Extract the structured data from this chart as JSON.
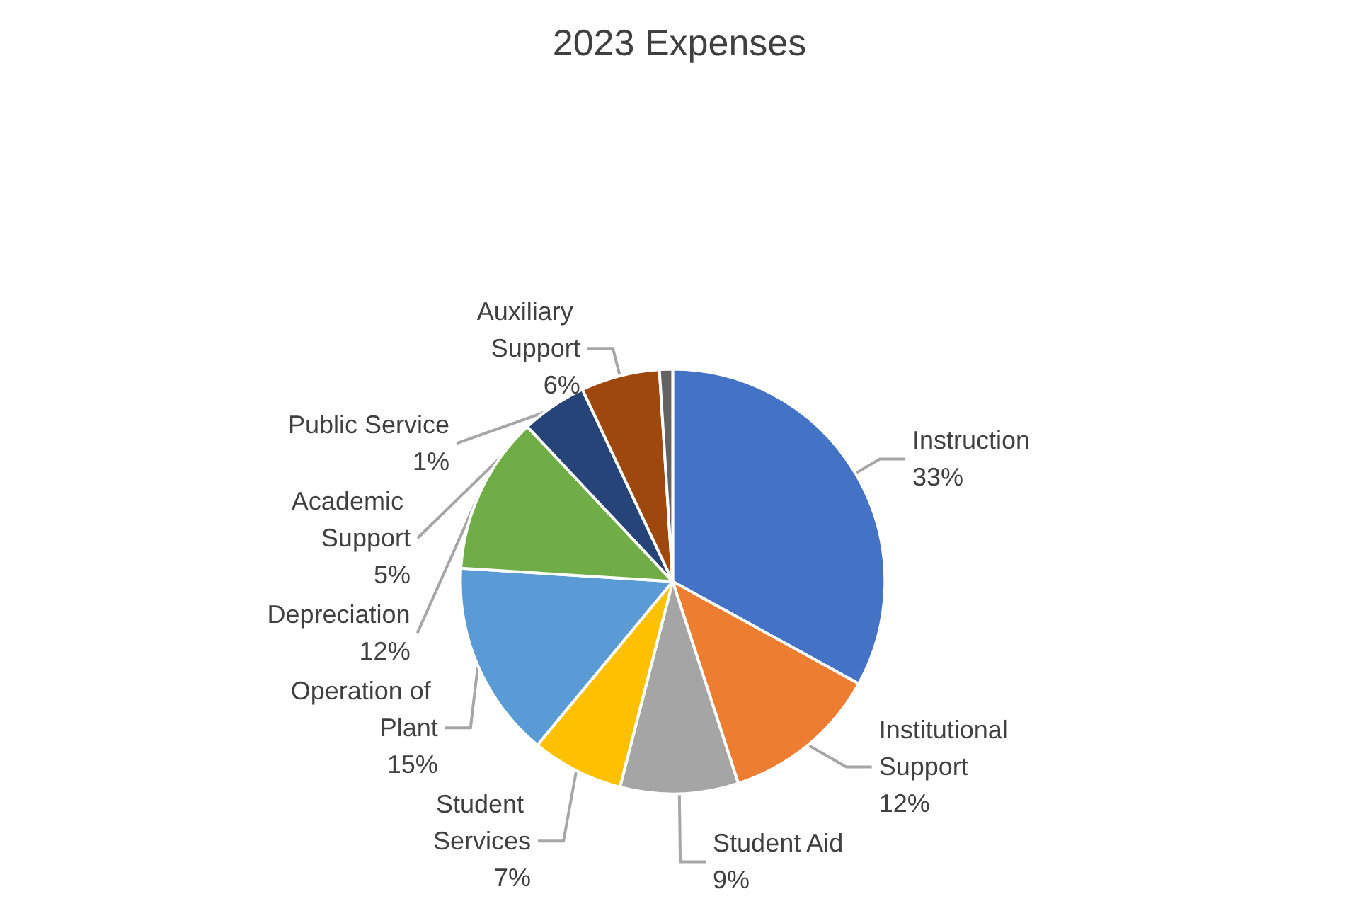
{
  "chart_data": {
    "type": "pie",
    "title": "2023 Expenses",
    "categories": [
      "Instruction",
      "Institutional Support",
      "Student Aid",
      "Student Services",
      "Operation of Plant",
      "Depreciation",
      "Academic Support",
      "Auxiliary Support",
      "Public Service"
    ],
    "values": [
      33,
      12,
      9,
      7,
      15,
      12,
      5,
      6,
      1
    ],
    "value_labels": [
      "33%",
      "12%",
      "9%",
      "7%",
      "15%",
      "12%",
      "5%",
      "6%",
      "1%"
    ],
    "colors": [
      "#4472c4",
      "#ed7d31",
      "#a5a5a5",
      "#ffc000",
      "#5b9bd5",
      "#70ad47",
      "#264478",
      "#9e480e",
      "#636363"
    ],
    "legend": false
  }
}
